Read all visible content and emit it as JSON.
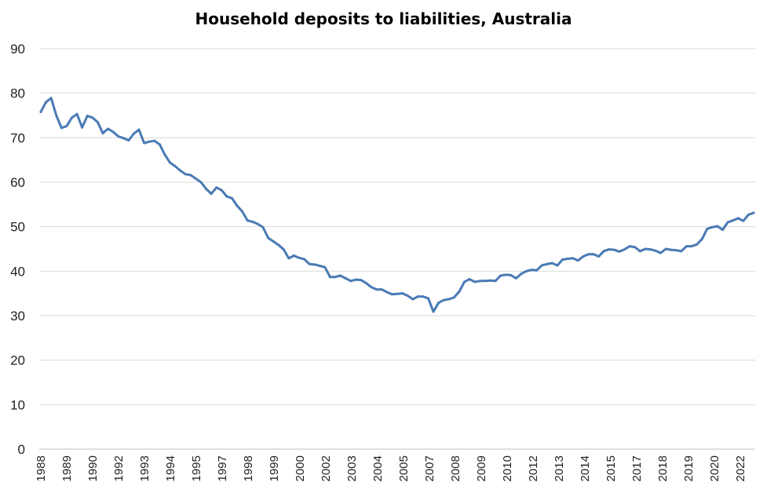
{
  "chart_data": {
    "type": "line",
    "title": "Household deposits to liabilities, Australia",
    "xlabel": "",
    "ylabel": "",
    "ylim": [
      0,
      90
    ],
    "yticks": [
      "0",
      "10",
      "20",
      "30",
      "40",
      "50",
      "60",
      "70",
      "80",
      "90"
    ],
    "grid": true,
    "legend": "none",
    "colors": {
      "line": "#4a7ab5"
    },
    "x_tick_labels": [
      "1988",
      "1989",
      "1990",
      "1992",
      "1993",
      "1994",
      "1995",
      "1997",
      "1998",
      "1999",
      "2000",
      "2002",
      "2003",
      "2004",
      "2005",
      "2007",
      "2008",
      "2009",
      "2010",
      "2012",
      "2013",
      "2014",
      "2015",
      "2017",
      "2018",
      "2019",
      "2020",
      "2022"
    ],
    "series": [
      {
        "values": [
          75.8,
          78.0,
          78.9,
          75.0,
          72.2,
          72.6,
          74.5,
          75.3,
          72.3,
          74.9,
          74.5,
          73.5,
          71.0,
          72.0,
          71.3,
          70.3,
          69.9,
          69.4,
          70.9,
          71.8,
          68.8,
          69.1,
          69.3,
          68.5,
          66.2,
          64.4,
          63.6,
          62.6,
          61.8,
          61.6,
          60.8,
          60.0,
          58.5,
          57.4,
          58.8,
          58.2,
          56.8,
          56.4,
          54.7,
          53.4,
          51.4,
          51.1,
          50.6,
          49.9,
          47.5,
          46.7,
          45.9,
          44.9,
          42.9,
          43.5,
          43.0,
          42.7,
          41.6,
          41.5,
          41.2,
          40.9,
          38.7,
          38.7,
          39.0,
          38.4,
          37.8,
          38.1,
          38.0,
          37.3,
          36.4,
          35.9,
          35.9,
          35.3,
          34.8,
          34.9,
          35.0,
          34.5,
          33.7,
          34.3,
          34.3,
          33.9,
          30.9,
          32.9,
          33.5,
          33.7,
          34.1,
          35.4,
          37.6,
          38.2,
          37.6,
          37.8,
          37.8,
          37.9,
          37.8,
          39.0,
          39.2,
          39.1,
          38.4,
          39.4,
          40.0,
          40.3,
          40.2,
          41.3,
          41.6,
          41.8,
          41.3,
          42.6,
          42.8,
          42.9,
          42.4,
          43.3,
          43.8,
          43.8,
          43.3,
          44.5,
          44.9,
          44.8,
          44.4,
          44.9,
          45.6,
          45.4,
          44.5,
          45.0,
          44.9,
          44.6,
          44.1,
          45.0,
          44.8,
          44.7,
          44.5,
          45.6,
          45.6,
          46.0,
          47.2,
          49.5,
          49.9,
          50.1,
          49.3,
          51.0,
          51.4,
          51.9,
          51.3,
          52.7,
          53.1
        ]
      }
    ]
  }
}
